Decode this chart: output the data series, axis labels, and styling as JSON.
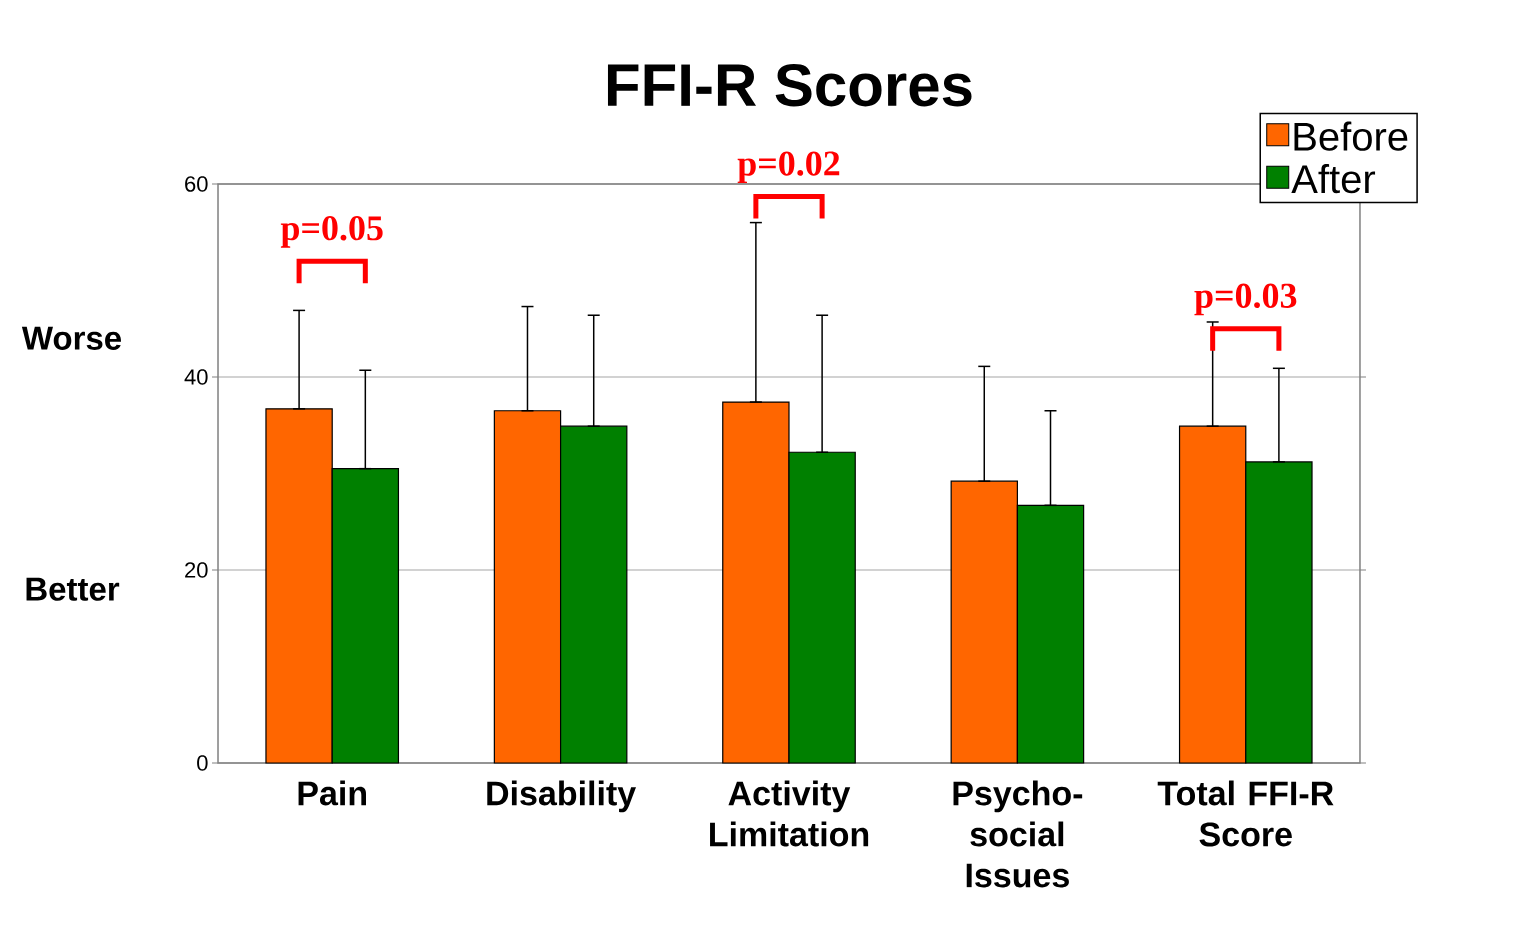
{
  "chart_data": {
    "type": "bar",
    "title": "FFI-R Scores",
    "categories": [
      "Pain",
      "Disability",
      "Activity Limitation",
      "Psycho-social Issues",
      "Total FFI-R Score"
    ],
    "series": [
      {
        "name": "Before",
        "color": "#ff6600",
        "values": [
          36.7,
          36.5,
          37.4,
          29.2,
          34.9
        ],
        "errors": [
          [
            36.7,
            46.9
          ],
          [
            36.5,
            47.3
          ],
          [
            37.4,
            56.0
          ],
          [
            29.2,
            41.1
          ],
          [
            34.9,
            45.7
          ]
        ]
      },
      {
        "name": "After",
        "color": "#008000",
        "values": [
          30.5,
          34.9,
          32.2,
          26.7,
          31.2
        ],
        "errors": [
          [
            30.5,
            40.7
          ],
          [
            34.9,
            46.4
          ],
          [
            32.2,
            46.4
          ],
          [
            26.7,
            36.5
          ],
          [
            31.2,
            40.9
          ]
        ]
      }
    ],
    "ylim": [
      0,
      60
    ],
    "yticks": [
      0,
      20,
      40,
      60
    ],
    "grid": "y",
    "legend": "top right",
    "annotations": [
      "p=0.05",
      "p=0.02",
      "p=0.03",
      "Worse",
      "Better"
    ]
  }
}
